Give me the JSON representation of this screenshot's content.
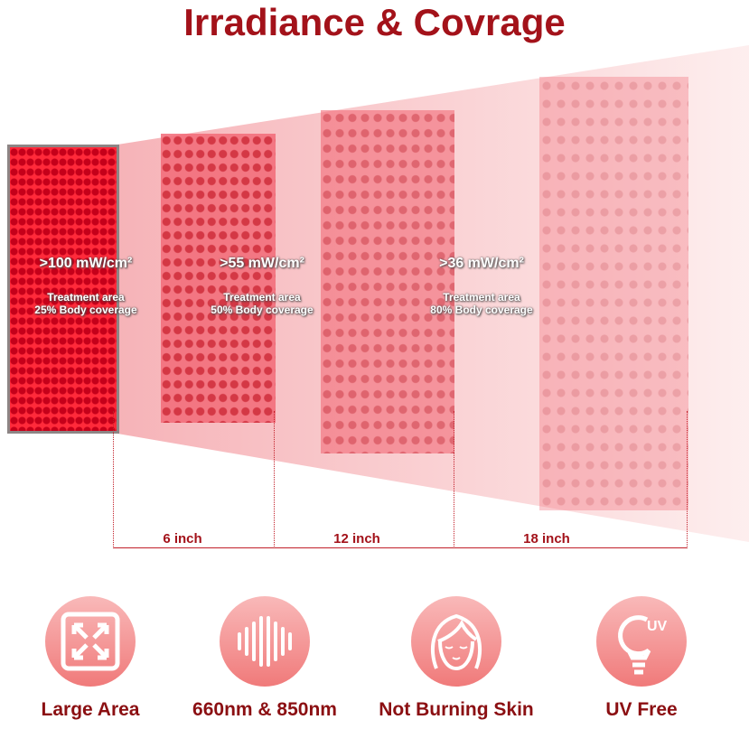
{
  "title": "Irradiance & Covrage",
  "panels": [
    {
      "irradiance": ">100 mW/cm²",
      "area": "Treatment area",
      "coverage": "25% Body coverage"
    },
    {
      "irradiance": ">55 mW/cm²",
      "area": "Treatment area",
      "coverage": "50% Body coverage"
    },
    {
      "irradiance": ">36 mW/cm²",
      "area": "Treatment area",
      "coverage": "80% Body coverage"
    }
  ],
  "distances": [
    "6 inch",
    "12 inch",
    "18 inch"
  ],
  "features": [
    {
      "label": "Large Area",
      "icon": "expand-arrows-icon"
    },
    {
      "label": "660nm & 850nm",
      "icon": "wave-bars-icon"
    },
    {
      "label": "Not Burning Skin",
      "icon": "face-icon"
    },
    {
      "label": "UV Free",
      "icon": "uv-bulb-icon",
      "icon_text": "UV"
    }
  ],
  "colors": {
    "title": "#a3121a",
    "accent": "#c2202a",
    "icon_bg": "#f07a7a"
  }
}
